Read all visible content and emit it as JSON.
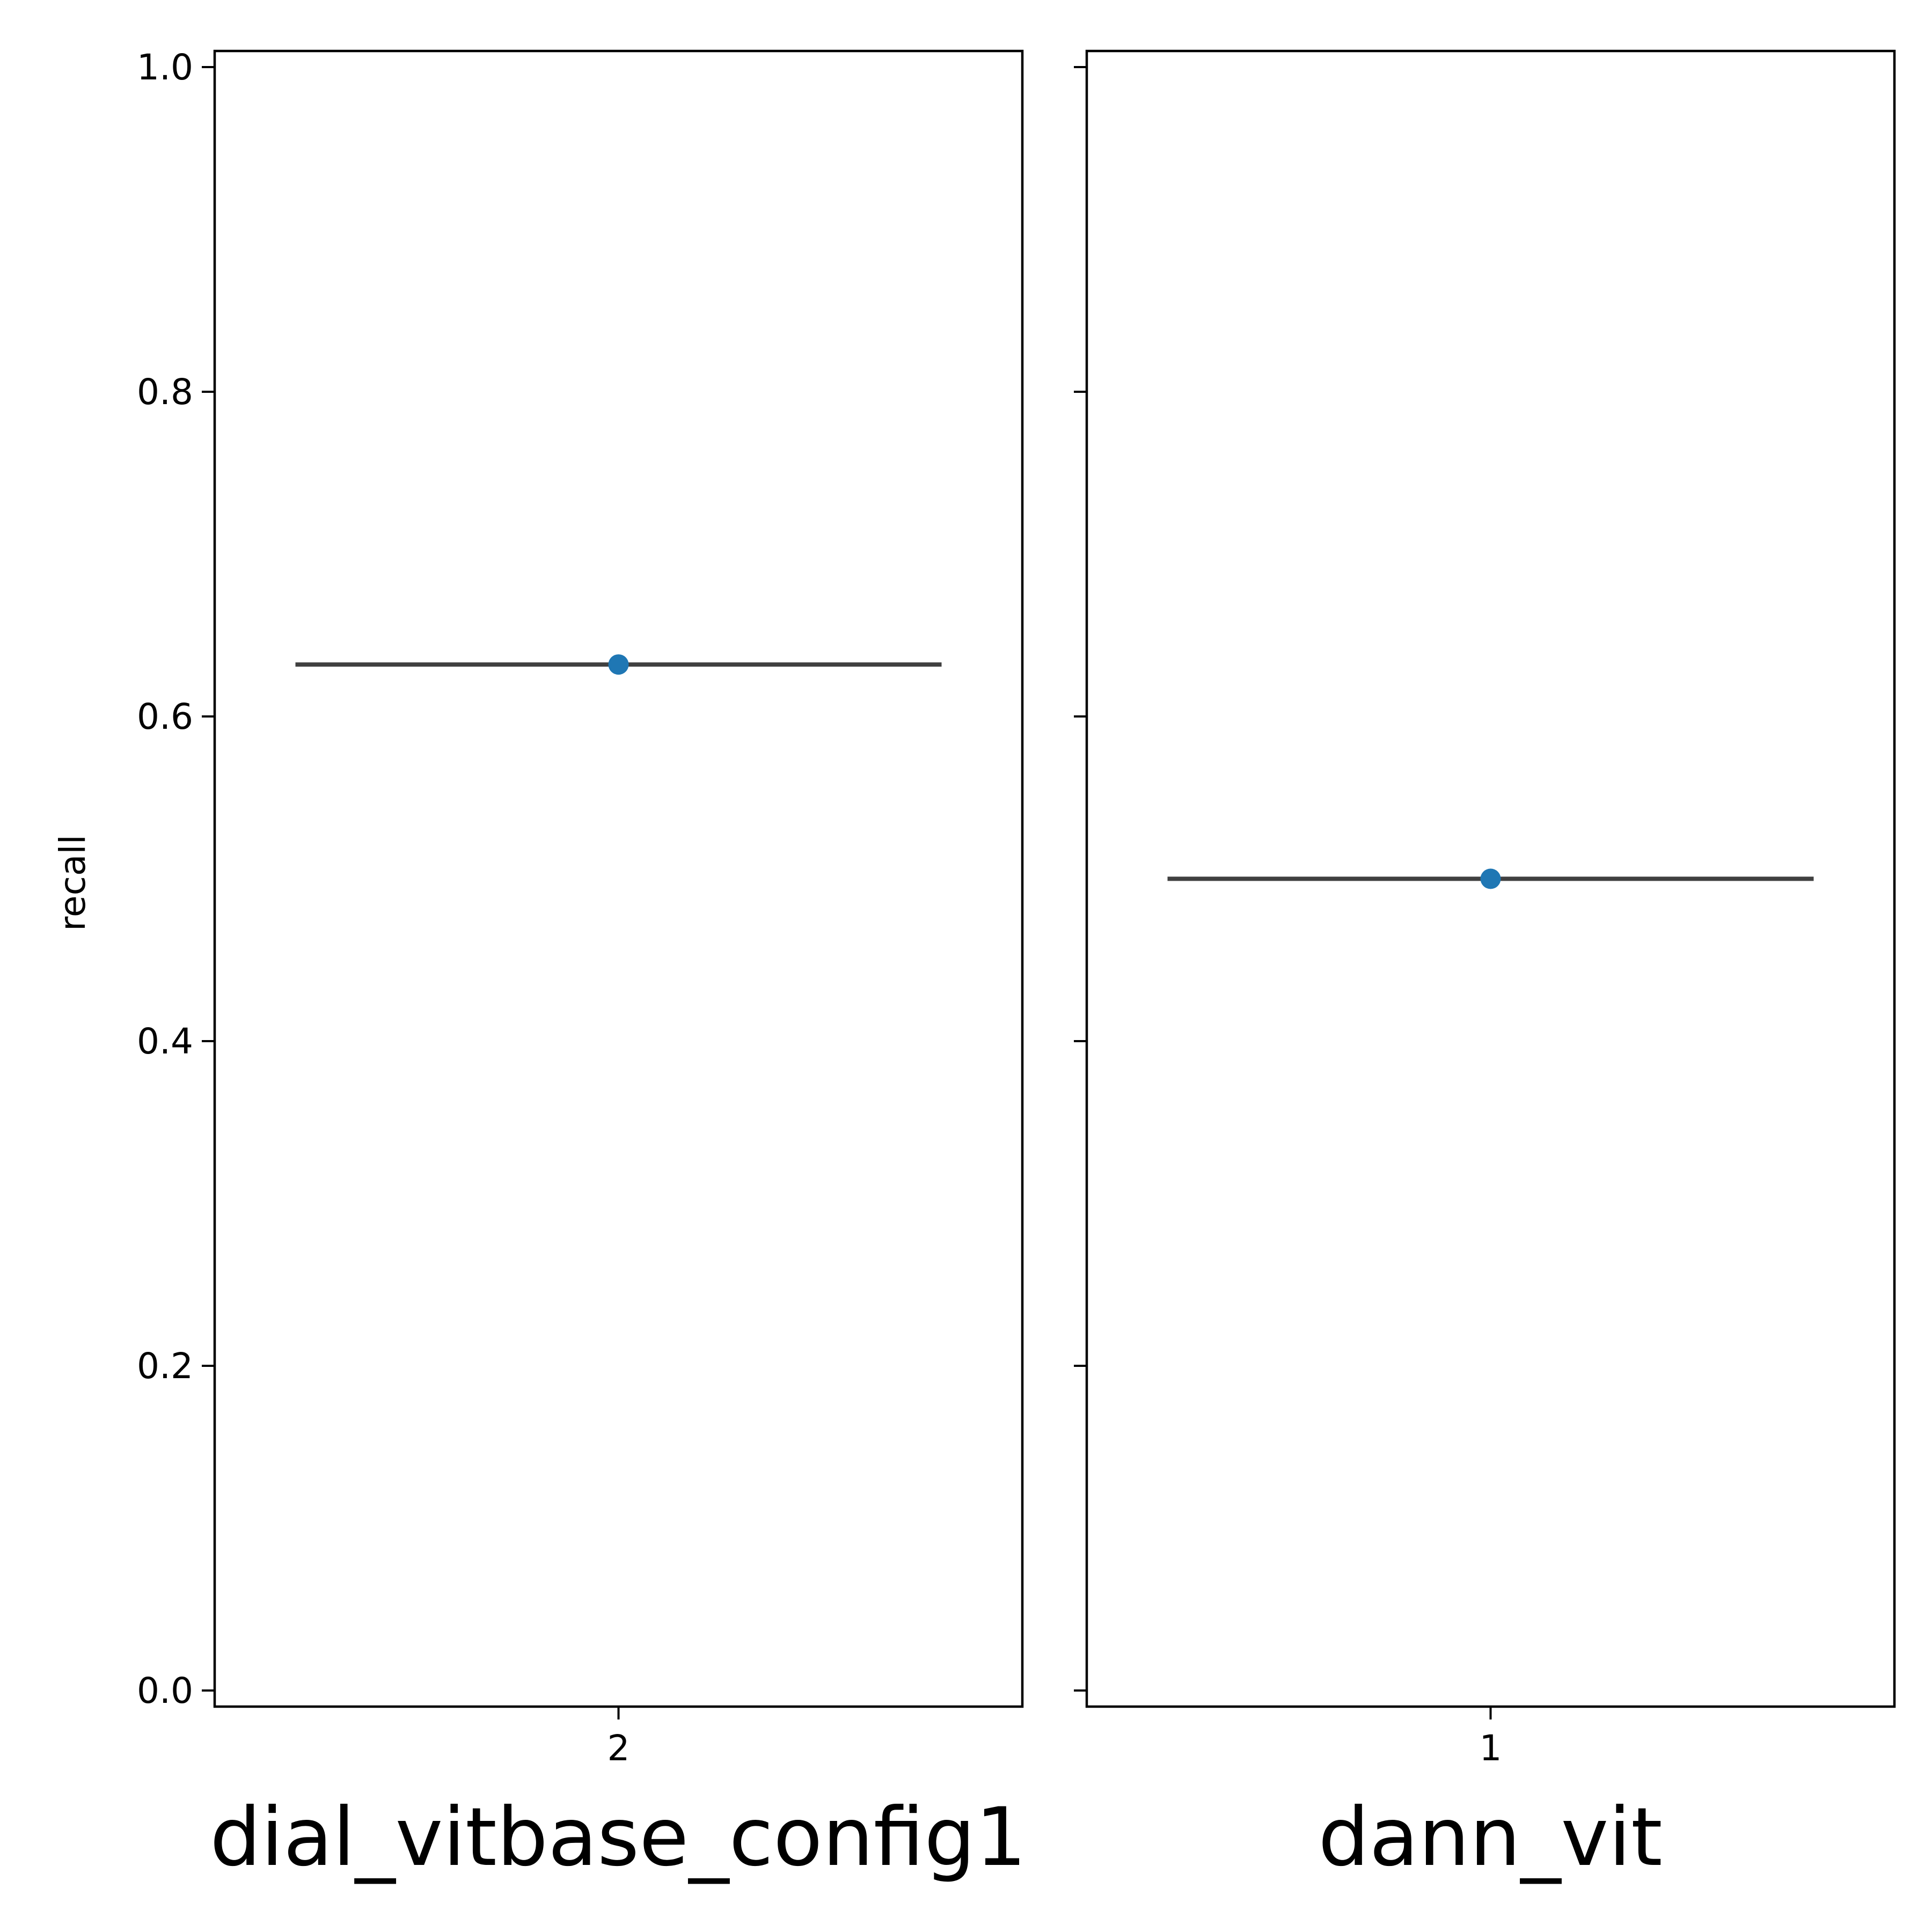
{
  "chart_data": {
    "type": "scatter",
    "ylabel": "recall",
    "ylim": [
      0.0,
      1.0
    ],
    "yticks": [
      "0.0",
      "0.2",
      "0.4",
      "0.6",
      "0.8",
      "1.0"
    ],
    "ytick_values": [
      0.0,
      0.2,
      0.4,
      0.6,
      0.8,
      1.0
    ],
    "shared_y": true,
    "grid": false,
    "point_color": "#1f77b4",
    "errorbar_color": "#404040",
    "panels": [
      {
        "title": "dial_vitbase_config1",
        "categories": [
          "2"
        ],
        "values": [
          0.632
        ]
      },
      {
        "title": "dann_vit",
        "categories": [
          "1"
        ],
        "values": [
          0.5
        ]
      }
    ]
  }
}
